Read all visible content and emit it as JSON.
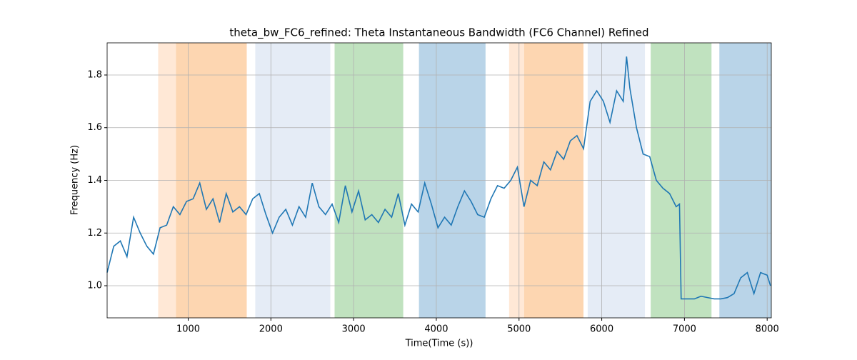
{
  "chart_data": {
    "type": "line",
    "title": "theta_bw_FC6_refined: Theta Instantaneous Bandwidth (FC6 Channel) Refined",
    "x_label": "Time(Time (s))",
    "y_label": "Frequency (Hz)",
    "xlim": [
      20,
      8050
    ],
    "ylim": [
      0.878,
      1.922
    ],
    "xticks": [
      1000,
      2000,
      3000,
      4000,
      5000,
      6000,
      7000,
      8000
    ],
    "yticks": [
      {
        "value": 1,
        "label": "1.0"
      },
      1.2,
      1.4,
      1.6,
      1.8
    ],
    "grid": true,
    "spans": [
      {
        "start": 637,
        "end": 853,
        "color": "#ffe8d6"
      },
      {
        "start": 853,
        "end": 1708,
        "color": "#fdd6b1"
      },
      {
        "start": 1811,
        "end": 2718,
        "color": "#e5ecf6"
      },
      {
        "start": 2770,
        "end": 3600,
        "color": "#c0e2bf"
      },
      {
        "start": 3790,
        "end": 4595,
        "color": "#b9d4e8"
      },
      {
        "start": 4880,
        "end": 5061,
        "color": "#ffe8d6"
      },
      {
        "start": 5061,
        "end": 5779,
        "color": "#fdd6b1"
      },
      {
        "start": 5830,
        "end": 6522,
        "color": "#e5ecf6"
      },
      {
        "start": 6592,
        "end": 7327,
        "color": "#c0e2bf"
      },
      {
        "start": 7422,
        "end": 8050,
        "color": "#b9d4e8"
      }
    ],
    "x": [
      20,
      100,
      180,
      260,
      340,
      420,
      500,
      580,
      660,
      740,
      820,
      900,
      980,
      1060,
      1140,
      1220,
      1300,
      1380,
      1460,
      1540,
      1620,
      1700,
      1780,
      1860,
      1940,
      2020,
      2100,
      2180,
      2260,
      2340,
      2420,
      2500,
      2580,
      2660,
      2740,
      2820,
      2900,
      2980,
      3060,
      3140,
      3220,
      3300,
      3380,
      3460,
      3540,
      3620,
      3700,
      3780,
      3860,
      3940,
      4020,
      4100,
      4180,
      4260,
      4340,
      4420,
      4500,
      4580,
      4660,
      4740,
      4820,
      4900,
      4980,
      5060,
      5140,
      5220,
      5300,
      5380,
      5460,
      5540,
      5620,
      5700,
      5780,
      5860,
      5940,
      6020,
      6100,
      6180,
      6260,
      6300,
      6340,
      6420,
      6500,
      6580,
      6660,
      6740,
      6820,
      6900,
      6940,
      6960,
      7040,
      7120,
      7200,
      7280,
      7360,
      7440,
      7520,
      7600,
      7680,
      7760,
      7840,
      7920,
      8000,
      8040
    ],
    "series": [
      {
        "name": "theta_bw",
        "color": "#1f77b4",
        "values": [
          1.05,
          1.15,
          1.17,
          1.11,
          1.26,
          1.2,
          1.15,
          1.12,
          1.22,
          1.23,
          1.3,
          1.27,
          1.32,
          1.33,
          1.39,
          1.29,
          1.33,
          1.24,
          1.35,
          1.28,
          1.3,
          1.27,
          1.33,
          1.35,
          1.27,
          1.2,
          1.26,
          1.29,
          1.23,
          1.3,
          1.26,
          1.39,
          1.3,
          1.27,
          1.31,
          1.24,
          1.38,
          1.28,
          1.36,
          1.25,
          1.27,
          1.24,
          1.29,
          1.26,
          1.35,
          1.23,
          1.31,
          1.28,
          1.39,
          1.31,
          1.22,
          1.26,
          1.23,
          1.3,
          1.36,
          1.32,
          1.27,
          1.26,
          1.33,
          1.38,
          1.37,
          1.4,
          1.45,
          1.3,
          1.4,
          1.38,
          1.47,
          1.44,
          1.51,
          1.48,
          1.55,
          1.57,
          1.52,
          1.7,
          1.74,
          1.7,
          1.62,
          1.74,
          1.7,
          1.87,
          1.75,
          1.6,
          1.5,
          1.49,
          1.4,
          1.37,
          1.35,
          1.3,
          1.31,
          0.95,
          0.95,
          0.95,
          0.96,
          0.955,
          0.95,
          0.95,
          0.955,
          0.97,
          1.03,
          1.05,
          0.97,
          1.05,
          1.04,
          1.0
        ]
      }
    ]
  }
}
